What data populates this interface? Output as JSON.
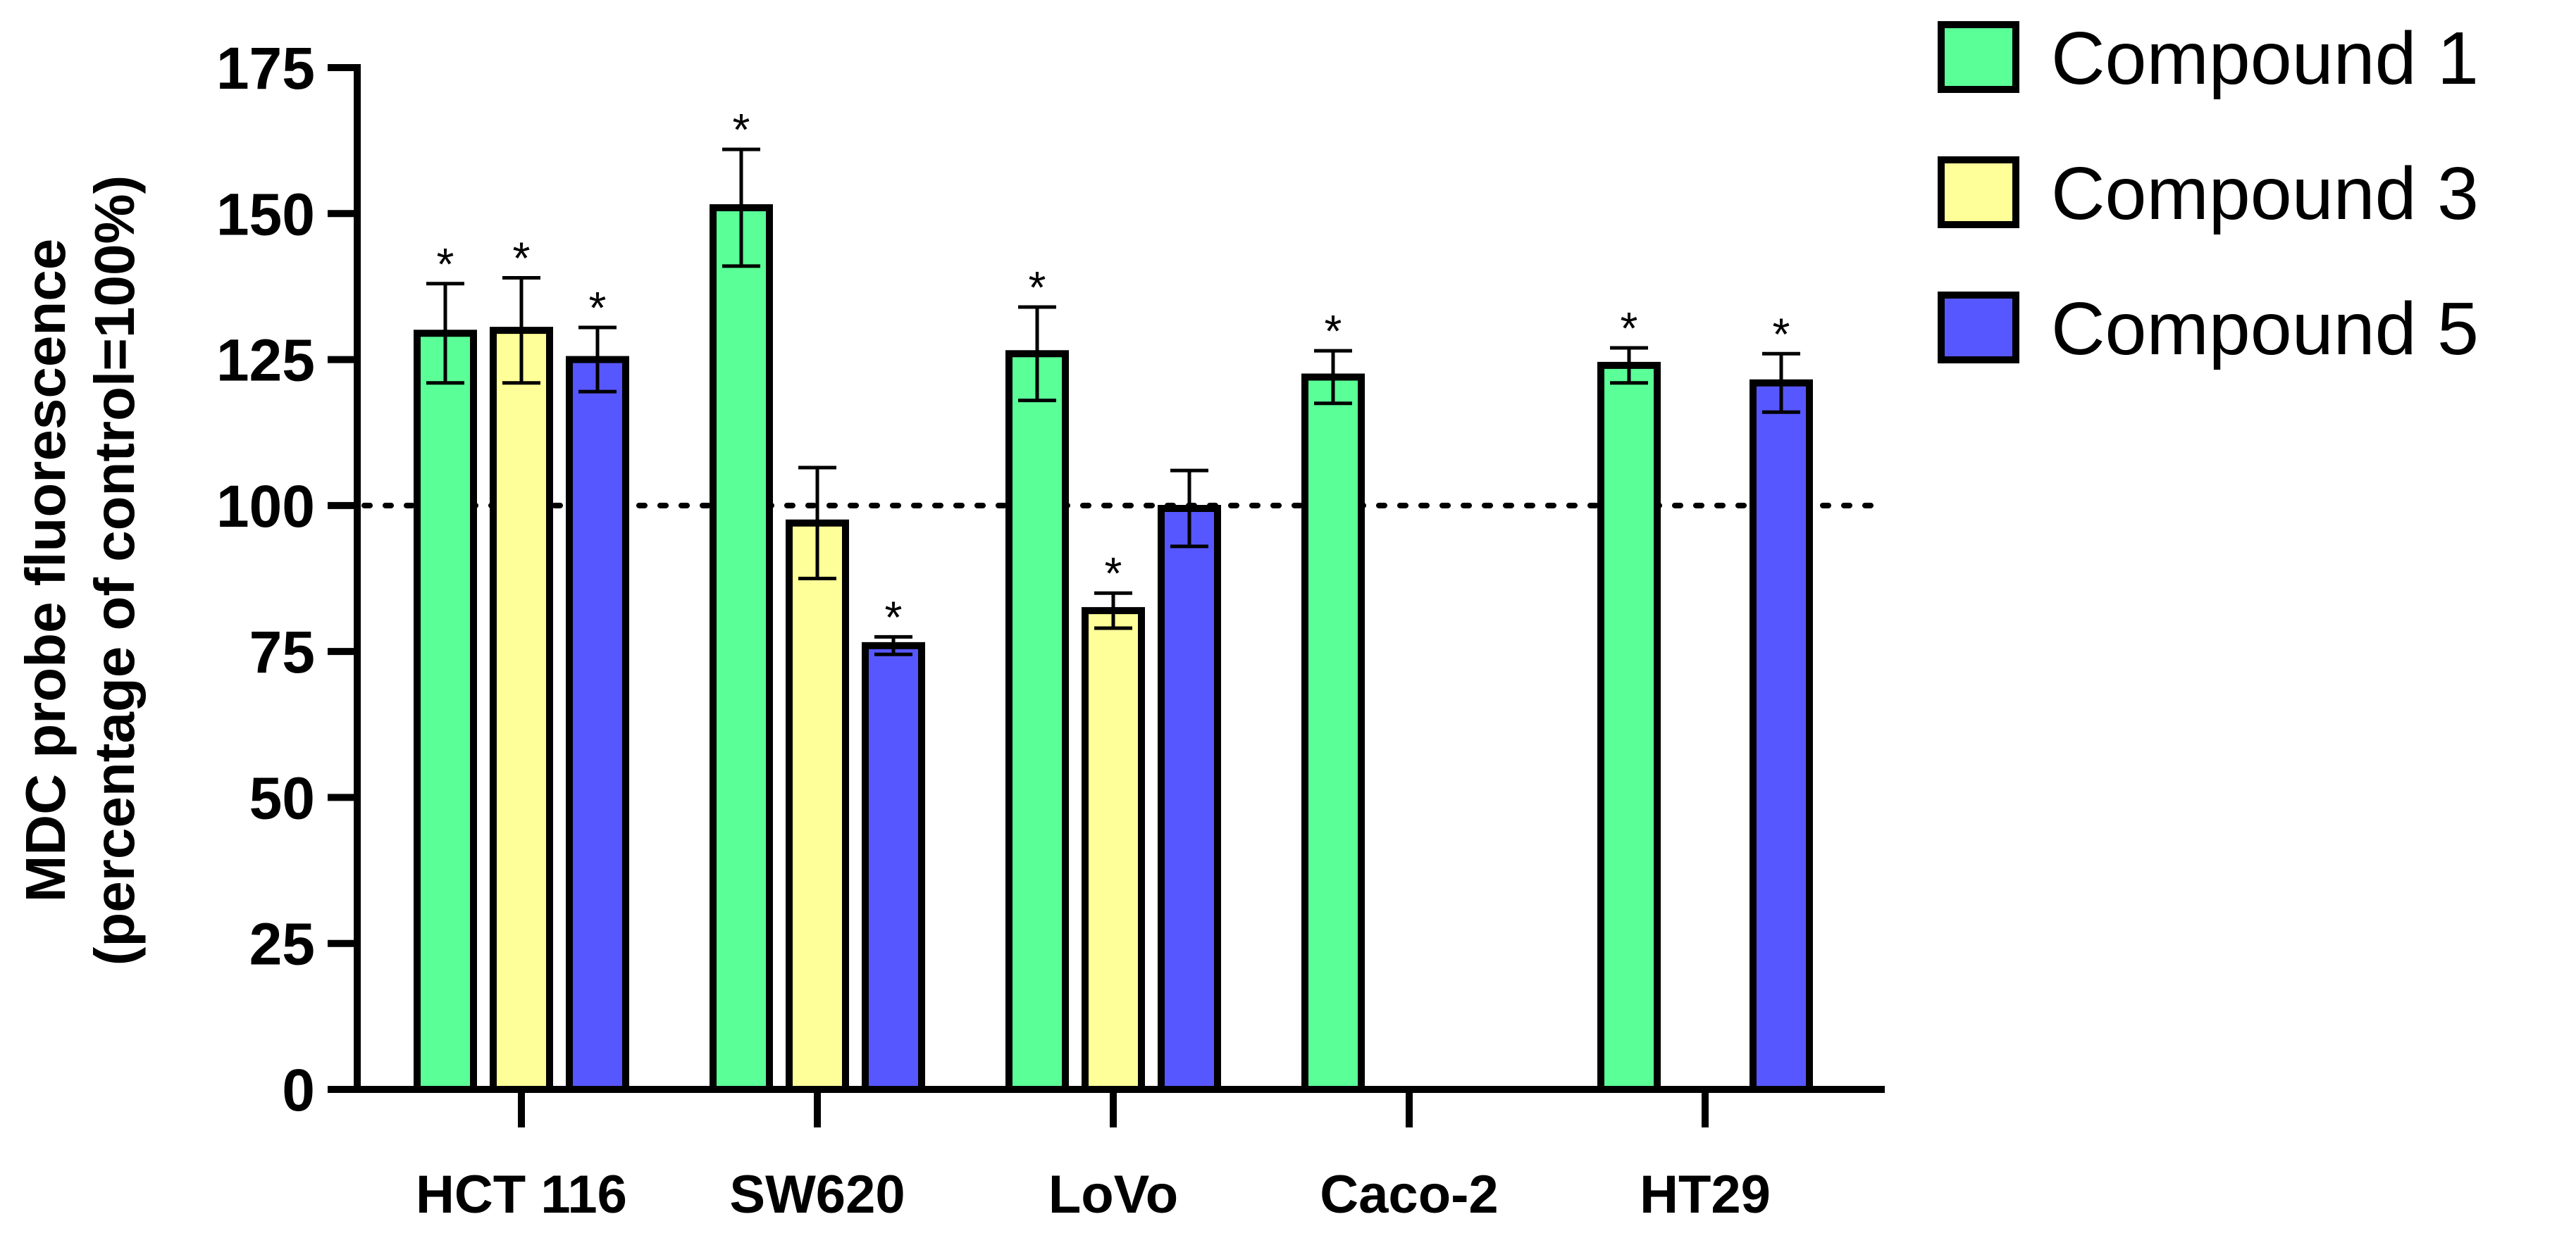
{
  "chart_data": {
    "type": "bar",
    "title": "",
    "xlabel": "",
    "ylabel_line1": "MDC probe fluorescence",
    "ylabel_line2": "(percentage of control=100%)",
    "ylim": [
      0,
      175
    ],
    "yticks": [
      0,
      25,
      50,
      75,
      100,
      125,
      150,
      175
    ],
    "yticks_labels": [
      "0",
      "25",
      "50",
      "75",
      "100",
      "125",
      "150",
      "175"
    ],
    "reference_line": 100,
    "categories": [
      "HCT 116",
      "SW620",
      "LoVo",
      "Caco-2",
      "HT29"
    ],
    "series": [
      {
        "name": "Compound 1",
        "color": "#5BFF97",
        "values": [
          129.5,
          151,
          126,
          122,
          124
        ],
        "errors": [
          8.5,
          10,
          8,
          4.5,
          3
        ],
        "significance": [
          "*",
          "*",
          "*",
          "*",
          "*"
        ]
      },
      {
        "name": "Compound 3",
        "color": "#FFFF99",
        "values": [
          130,
          97,
          82,
          null,
          null
        ],
        "errors": [
          9,
          9.5,
          3,
          null,
          null
        ],
        "significance": [
          "*",
          "",
          "*",
          "",
          ""
        ]
      },
      {
        "name": "Compound 5",
        "color": "#5757FF",
        "values": [
          125,
          76,
          99.5,
          null,
          121
        ],
        "errors": [
          5.5,
          1.5,
          6.5,
          null,
          5
        ],
        "significance": [
          "*",
          "*",
          "",
          "",
          "*"
        ]
      }
    ],
    "legend_position": "top-right"
  }
}
